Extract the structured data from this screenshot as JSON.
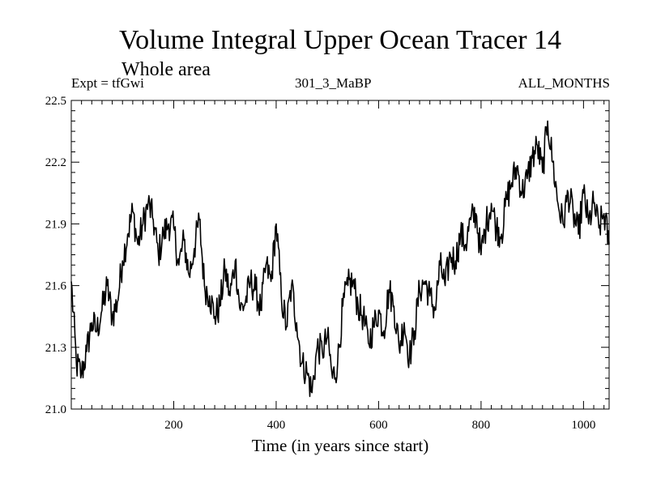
{
  "chart_data": {
    "type": "line",
    "title": "Volume Integral Upper Ocean Tracer 14",
    "subtitle": "Whole area",
    "experiment": "Expt = tfGwi",
    "run_id": "301_3_MaBP",
    "period": "ALL_MONTHS",
    "xlabel": "Time (in years since start)",
    "ylabel": "",
    "xlim": [
      0,
      1050
    ],
    "ylim": [
      21.0,
      22.5
    ],
    "xticks": [
      200,
      400,
      600,
      800,
      1000
    ],
    "xtick_labels": [
      "200",
      "400",
      "600",
      "800",
      "1000"
    ],
    "yticks": [
      21.0,
      21.3,
      21.6,
      21.9,
      22.2,
      22.5
    ],
    "ytick_labels": [
      "21.0",
      "21.3",
      "21.6",
      "21.9",
      "22.2",
      "22.5"
    ],
    "grid": false,
    "legend": "none",
    "series": [
      {
        "name": "Upper Ocean Tracer 14",
        "x": [
          0,
          10,
          20,
          30,
          40,
          50,
          60,
          70,
          80,
          90,
          100,
          110,
          120,
          130,
          140,
          150,
          160,
          170,
          180,
          190,
          200,
          210,
          220,
          230,
          240,
          250,
          260,
          270,
          280,
          290,
          300,
          310,
          320,
          330,
          340,
          350,
          360,
          370,
          380,
          390,
          400,
          410,
          420,
          430,
          440,
          450,
          460,
          470,
          480,
          490,
          500,
          510,
          520,
          530,
          540,
          550,
          560,
          570,
          580,
          590,
          600,
          610,
          620,
          630,
          640,
          650,
          660,
          670,
          680,
          690,
          700,
          710,
          720,
          730,
          740,
          750,
          760,
          770,
          780,
          790,
          800,
          810,
          820,
          830,
          840,
          850,
          860,
          870,
          880,
          890,
          900,
          910,
          920,
          930,
          940,
          950,
          960,
          970,
          980,
          990,
          1000,
          1010,
          1020,
          1030,
          1040,
          1050
        ],
        "values": [
          21.62,
          21.22,
          21.17,
          21.28,
          21.42,
          21.38,
          21.48,
          21.6,
          21.45,
          21.52,
          21.72,
          21.85,
          21.96,
          21.8,
          21.9,
          22.0,
          21.92,
          21.75,
          21.85,
          21.9,
          21.88,
          21.7,
          21.82,
          21.65,
          21.78,
          21.92,
          21.6,
          21.55,
          21.45,
          21.5,
          21.68,
          21.55,
          21.72,
          21.48,
          21.52,
          21.62,
          21.58,
          21.48,
          21.7,
          21.62,
          21.9,
          21.55,
          21.4,
          21.6,
          21.42,
          21.22,
          21.18,
          21.08,
          21.3,
          21.28,
          21.35,
          21.15,
          21.22,
          21.5,
          21.6,
          21.62,
          21.5,
          21.45,
          21.32,
          21.4,
          21.48,
          21.38,
          21.58,
          21.5,
          21.3,
          21.42,
          21.25,
          21.38,
          21.58,
          21.62,
          21.55,
          21.48,
          21.7,
          21.6,
          21.75,
          21.72,
          21.85,
          21.8,
          21.92,
          21.95,
          21.75,
          21.9,
          22.0,
          21.88,
          21.85,
          22.02,
          22.1,
          22.18,
          22.05,
          22.12,
          22.22,
          22.28,
          22.15,
          22.4,
          22.2,
          22.0,
          21.9,
          22.05,
          21.95,
          21.85,
          22.05,
          21.9,
          22.0,
          21.88,
          21.95,
          21.8
        ]
      }
    ]
  }
}
